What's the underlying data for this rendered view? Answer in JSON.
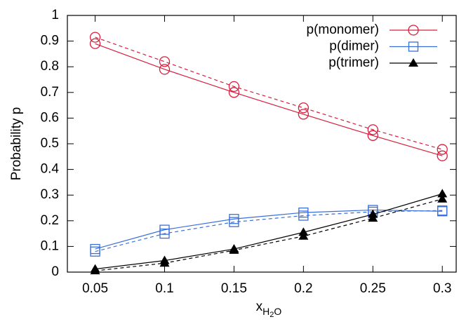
{
  "chart_data": {
    "type": "line",
    "ylabel": "Probability p",
    "xlabel": [
      "x",
      "H",
      "2",
      "O"
    ],
    "x": [
      0.05,
      0.1,
      0.15,
      0.2,
      0.25,
      0.3
    ],
    "xlim": [
      0.03,
      0.31
    ],
    "xticks": [
      0.05,
      0.1,
      0.15,
      0.2,
      0.25,
      0.3
    ],
    "ylim": [
      0,
      1
    ],
    "yticks": [
      0,
      0.1,
      0.2,
      0.3,
      0.4,
      0.5,
      0.6,
      0.7,
      0.8,
      0.9,
      1
    ],
    "legend": "top-right",
    "series": [
      {
        "name": "p(monomer)",
        "color": "#d81e3c",
        "marker": "circle",
        "dashed": false,
        "values": [
          0.89,
          0.79,
          0.7,
          0.615,
          0.532,
          0.453
        ]
      },
      {
        "color": "#d81e3c",
        "marker": "circle",
        "dashed": true,
        "values": [
          0.915,
          0.82,
          0.723,
          0.64,
          0.555,
          0.478
        ]
      },
      {
        "name": "p(dimer)",
        "color": "#3a6fd8",
        "marker": "square",
        "dashed": false,
        "values": [
          0.09,
          0.165,
          0.207,
          0.232,
          0.242,
          0.237
        ]
      },
      {
        "color": "#3a6fd8",
        "marker": "square",
        "dashed": true,
        "values": [
          0.08,
          0.15,
          0.195,
          0.22,
          0.235,
          0.24
        ]
      },
      {
        "name": "p(trimer)",
        "color": "#000000",
        "marker": "triangle",
        "dashed": false,
        "values": [
          0.012,
          0.045,
          0.09,
          0.155,
          0.225,
          0.305
        ]
      },
      {
        "color": "#000000",
        "marker": "triangle",
        "dashed": true,
        "values": [
          0.005,
          0.035,
          0.085,
          0.14,
          0.21,
          0.285
        ]
      }
    ]
  }
}
